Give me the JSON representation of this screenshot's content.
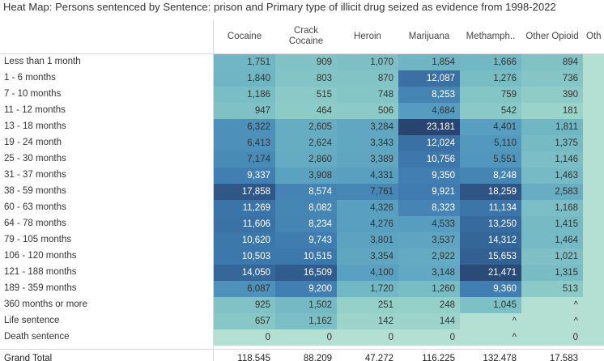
{
  "chart_data": {
    "type": "heatmap",
    "title": "Heat Map: Persons sentenced by Sentence: prison and Primary type of illicit drug seized as evidence from 1998-2022",
    "columns": [
      "Cocaine",
      "Crack Cocaine",
      "Heroin",
      "Marijuana",
      "Methamph..",
      "Other Opioid",
      "Oth"
    ],
    "rows": [
      {
        "label": "Less than 1 month",
        "values": [
          "1,751",
          "909",
          "1,070",
          "1,854",
          "1,666",
          "894",
          ""
        ]
      },
      {
        "label": "1 - 6 months",
        "values": [
          "1,840",
          "803",
          "870",
          "12,087",
          "1,276",
          "736",
          ""
        ]
      },
      {
        "label": "7 - 10 months",
        "values": [
          "1,186",
          "515",
          "748",
          "8,253",
          "759",
          "390",
          ""
        ]
      },
      {
        "label": "11 - 12 months",
        "values": [
          "947",
          "464",
          "506",
          "4,684",
          "542",
          "181",
          ""
        ]
      },
      {
        "label": "13 - 18 months",
        "values": [
          "6,322",
          "2,605",
          "3,284",
          "23,181",
          "4,401",
          "1,811",
          ""
        ]
      },
      {
        "label": "19 - 24 month",
        "values": [
          "6,413",
          "2,624",
          "3,343",
          "12,024",
          "5,110",
          "1,375",
          ""
        ]
      },
      {
        "label": "25 - 30 months",
        "values": [
          "7,174",
          "2,860",
          "3,389",
          "10,756",
          "5,551",
          "1,146",
          ""
        ]
      },
      {
        "label": "31 - 37 months",
        "values": [
          "9,337",
          "3,908",
          "4,331",
          "9,350",
          "8,248",
          "1,463",
          ""
        ]
      },
      {
        "label": "38 - 59 months",
        "values": [
          "17,858",
          "8,574",
          "7,761",
          "9,921",
          "18,259",
          "2,583",
          ""
        ]
      },
      {
        "label": "60 - 63 months",
        "values": [
          "11,269",
          "8,082",
          "4,326",
          "8,323",
          "11,134",
          "1,168",
          ""
        ]
      },
      {
        "label": "64 - 78 months",
        "values": [
          "11,606",
          "8,234",
          "4,276",
          "4,533",
          "13,250",
          "1,415",
          ""
        ]
      },
      {
        "label": "79 - 105 months",
        "values": [
          "10,620",
          "9,743",
          "3,801",
          "3,537",
          "14,312",
          "1,464",
          ""
        ]
      },
      {
        "label": "106 - 120 months",
        "values": [
          "10,503",
          "10,515",
          "3,354",
          "2,922",
          "15,653",
          "1,021",
          ""
        ]
      },
      {
        "label": "121 - 188 months",
        "values": [
          "14,050",
          "16,509",
          "4,100",
          "3,148",
          "21,471",
          "1,315",
          ""
        ]
      },
      {
        "label": "189 - 359 months",
        "values": [
          "6,087",
          "9,200",
          "1,720",
          "1,260",
          "9,360",
          "513",
          ""
        ]
      },
      {
        "label": "360 months or more",
        "values": [
          "925",
          "1,502",
          "251",
          "248",
          "1,045",
          "^",
          ""
        ]
      },
      {
        "label": "Life sentence",
        "values": [
          "657",
          "1,162",
          "142",
          "144",
          "^",
          "^",
          ""
        ]
      },
      {
        "label": "Death sentence",
        "values": [
          "0",
          "0",
          "0",
          "0",
          "^",
          "0",
          ""
        ]
      }
    ],
    "total": {
      "label": "Grand Total",
      "values": [
        "118,545",
        "88,209",
        "47,272",
        "116,225",
        "132,478",
        "17,583",
        ""
      ]
    },
    "color_low": "#b3e0d2",
    "color_high": "#2c4d7a"
  }
}
